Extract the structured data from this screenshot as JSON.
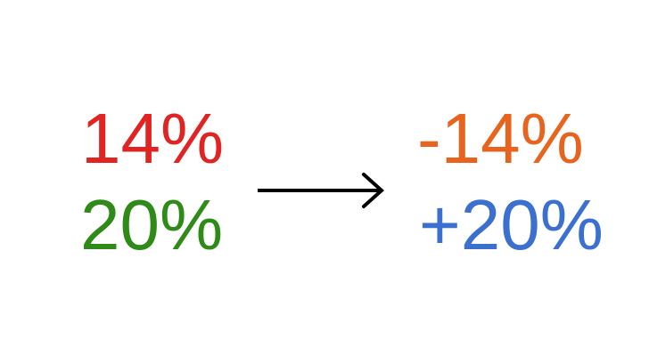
{
  "before": {
    "top_value": "14%",
    "bottom_value": "20%",
    "top_color": "#e02424",
    "bottom_color": "#2e8b17"
  },
  "after": {
    "top_value": "-14%",
    "bottom_value": "+20%",
    "top_color": "#e8641e",
    "bottom_color": "#3b6fd0"
  },
  "arrow": {
    "icon": "right-arrow-icon",
    "color": "#000000"
  }
}
